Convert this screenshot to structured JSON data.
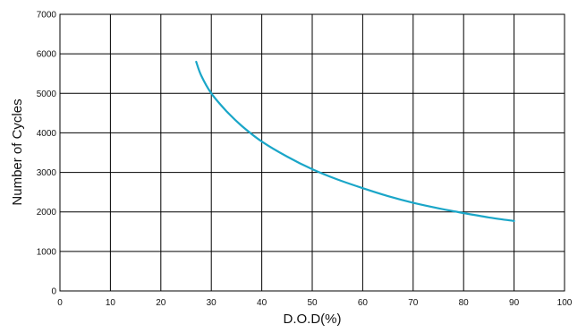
{
  "chart_data": {
    "type": "line",
    "title": "",
    "xlabel": "D.O.D(%)",
    "ylabel": "Number of Cycles",
    "xlim": [
      0,
      100
    ],
    "ylim": [
      0,
      7000
    ],
    "xticks": [
      0,
      10,
      20,
      30,
      40,
      50,
      60,
      70,
      80,
      90,
      100
    ],
    "yticks": [
      0,
      1000,
      2000,
      3000,
      4000,
      5000,
      6000,
      7000
    ],
    "grid": true,
    "legend": "none",
    "series": [
      {
        "color": "#1aa6c8",
        "x": [
          27,
          28,
          30,
          33,
          36,
          40,
          45,
          50,
          55,
          60,
          65,
          70,
          75,
          80,
          85,
          90
        ],
        "y": [
          5800,
          5450,
          5000,
          4550,
          4180,
          3780,
          3400,
          3080,
          2820,
          2600,
          2400,
          2230,
          2090,
          1970,
          1860,
          1770
        ]
      }
    ]
  }
}
